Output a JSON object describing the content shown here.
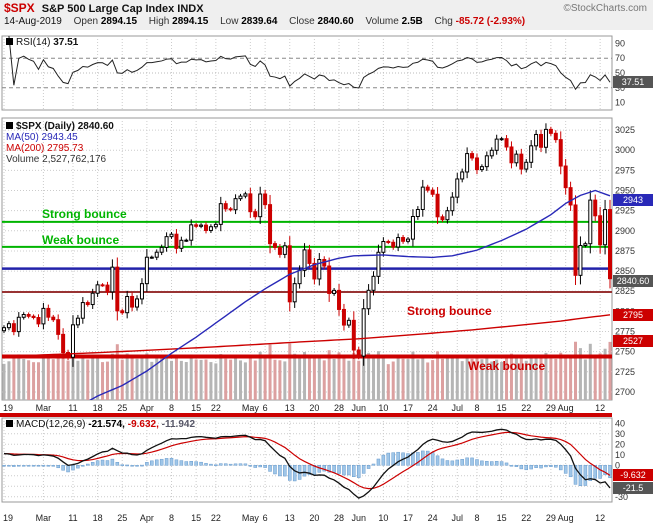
{
  "colors": {
    "symbol_red": "#cc0000",
    "up_candle": "#000000",
    "down_candle": "#cc0000",
    "ma50_blue": "#2929b8",
    "ma200_red": "#cc0000",
    "green_annotation": "#00b400",
    "red_annotation": "#cc0000",
    "blue_support": "#2222aa",
    "macd_histogram": "#9fc6e8",
    "volume_up": "#b5b5b5",
    "volume_down": "#dca0a0"
  },
  "header": {
    "symbol": "$SPX",
    "title": "S&P 500 Large Cap Index INDX",
    "brand": "©StockCharts.com",
    "date": "14-Aug-2019",
    "quote": {
      "open": {
        "label": "Open",
        "value": "2894.15"
      },
      "high": {
        "label": "High",
        "value": "2894.15"
      },
      "low": {
        "label": "Low",
        "value": "2839.64"
      },
      "close": {
        "label": "Close",
        "value": "2840.60"
      },
      "volume": {
        "label": "Volume",
        "value": "2.5B"
      },
      "chg": {
        "label": "Chg",
        "value": "-85.72 (-2.93%)"
      }
    }
  },
  "legends": {
    "rsi": {
      "label": "RSI(14)",
      "value": "37.51"
    },
    "price": {
      "symbol": "$SPX (Daily)",
      "value": "2840.60",
      "ma50": "MA(50) 2943.45",
      "ma200": "MA(200) 2795.73",
      "volume": "Volume 2,527,762,176"
    },
    "macd": {
      "label": "MACD(12,26,9)",
      "v1": "-21.574,",
      "v2": "-9.632,",
      "v3": "-11.942"
    }
  },
  "axis_boxes": {
    "rsi": "37.51",
    "ma50": "2943",
    "close": "2840.60",
    "ma200": "2795",
    "volume": "2527",
    "macd_signal": "-9.632",
    "macd_line": "-21.5"
  },
  "annotations": {
    "labels": [
      {
        "text": "Strong bounce",
        "color": "#00b400"
      },
      {
        "text": "Weak bounce",
        "color": "#00b400"
      },
      {
        "text": "Strong bounce",
        "color": "#cc0000"
      },
      {
        "text": "Weak bounce",
        "color": "#cc0000"
      }
    ]
  },
  "chart_data": {
    "type": "candlestick",
    "title": "$SPX S&P 500 Large Cap Index (Daily)",
    "last_close": 2840.6,
    "last_volume": "2,527,762,176",
    "open0": 2776.0,
    "close": [
      2779.76,
      2784.7,
      2774.88,
      2792.67,
      2796.11,
      2793.9,
      2792.38,
      2784.49,
      2803.69,
      2792.81,
      2789.65,
      2771.45,
      2748.93,
      2743.07,
      2783.3,
      2791.52,
      2810.92,
      2808.48,
      2822.48,
      2832.94,
      2832.57,
      2824.23,
      2854.88,
      2800.71,
      2798.36,
      2818.46,
      2805.37,
      2815.44,
      2834.4,
      2867.19,
      2867.24,
      2873.4,
      2879.39,
      2892.74,
      2895.77,
      2878.2,
      2888.21,
      2888.32,
      2907.41,
      2905.58,
      2907.06,
      2900.45,
      2905.03,
      2907.97,
      2933.68,
      2927.25,
      2926.17,
      2939.88,
      2943.03,
      2945.83,
      2923.73,
      2917.52,
      2945.64,
      2932.47,
      2884.05,
      2879.42,
      2870.72,
      2881.4,
      2811.87,
      2834.41,
      2850.96,
      2876.32,
      2859.53,
      2840.23,
      2864.36,
      2856.27,
      2822.24,
      2826.06,
      2802.39,
      2783.02,
      2788.86,
      2752.06,
      2744.45,
      2803.27,
      2826.15,
      2843.49,
      2873.34,
      2886.73,
      2885.72,
      2879.84,
      2891.64,
      2886.98,
      2889.67,
      2917.75,
      2926.46,
      2954.18,
      2950.46,
      2945.35,
      2917.38,
      2913.78,
      2924.92,
      2941.76,
      2964.33,
      2973.01,
      2995.82,
      2990.41,
      2975.95,
      2979.63,
      2993.07,
      2999.91,
      3013.77,
      3014.3,
      3004.04,
      2984.42,
      2995.11,
      2976.61,
      2985.03,
      3005.47,
      3019.56,
      3003.67,
      3025.86,
      3020.97,
      3013.18,
      2980.38,
      2953.56,
      2932.05,
      2844.74,
      2881.77,
      2883.98,
      2938.09,
      2918.65,
      2882.7,
      2926.32,
      2840.6
    ],
    "x_ticks": [
      [
        0,
        "19"
      ],
      [
        8,
        "Mar"
      ],
      [
        14,
        "11"
      ],
      [
        19,
        "18"
      ],
      [
        24,
        "25"
      ],
      [
        29,
        "Apr"
      ],
      [
        34,
        "8"
      ],
      [
        39,
        "15"
      ],
      [
        43,
        "22"
      ],
      [
        50,
        "May"
      ],
      [
        53,
        "6"
      ],
      [
        58,
        "13"
      ],
      [
        63,
        "20"
      ],
      [
        68,
        "28"
      ],
      [
        72,
        "Jun"
      ],
      [
        77,
        "10"
      ],
      [
        82,
        "17"
      ],
      [
        87,
        "24"
      ],
      [
        92,
        "Jul"
      ],
      [
        96,
        "8"
      ],
      [
        101,
        "15"
      ],
      [
        106,
        "22"
      ],
      [
        111,
        "29"
      ],
      [
        114,
        "Aug"
      ],
      [
        121,
        "12"
      ]
    ],
    "price_axis": {
      "min": 2690,
      "max": 3040,
      "tick_step": 25,
      "first_tick": 2700,
      "last_tick": 3025
    },
    "rsi": {
      "period": 14,
      "last": 37.51,
      "ticks": [
        90,
        70,
        50,
        30,
        10
      ],
      "ref_lines": [
        70,
        50,
        30
      ]
    },
    "macd": {
      "params": [
        12,
        26,
        9
      ],
      "last_macd": -21.574,
      "last_signal": -9.632,
      "last_hist": -11.942,
      "ticks": [
        40,
        30,
        20,
        10,
        0,
        -30
      ],
      "min": -35,
      "max": 45
    },
    "ma50": {
      "last": 2943.45,
      "anchors": [
        [
          0,
          2640
        ],
        [
          8,
          2658
        ],
        [
          14,
          2678
        ],
        [
          19,
          2695
        ],
        [
          24,
          2708
        ],
        [
          29,
          2726
        ],
        [
          34,
          2748
        ],
        [
          39,
          2768
        ],
        [
          44,
          2790
        ],
        [
          49,
          2812
        ],
        [
          53,
          2828
        ],
        [
          58,
          2846
        ],
        [
          63,
          2858
        ],
        [
          68,
          2866
        ],
        [
          71,
          2869
        ],
        [
          77,
          2870
        ],
        [
          82,
          2868
        ],
        [
          87,
          2867
        ],
        [
          91,
          2869
        ],
        [
          96,
          2876
        ],
        [
          101,
          2888
        ],
        [
          106,
          2902
        ],
        [
          111,
          2920
        ],
        [
          114,
          2934
        ],
        [
          117,
          2944
        ],
        [
          120,
          2950
        ],
        [
          123,
          2943.45
        ]
      ]
    },
    "ma200": {
      "last": 2795.73,
      "anchors": [
        [
          0,
          2744
        ],
        [
          20,
          2749
        ],
        [
          40,
          2755
        ],
        [
          60,
          2762
        ],
        [
          72,
          2766
        ],
        [
          85,
          2772
        ],
        [
          95,
          2777
        ],
        [
          105,
          2783
        ],
        [
          113,
          2788
        ],
        [
          118,
          2792
        ],
        [
          123,
          2795.73
        ]
      ]
    },
    "hlines": [
      {
        "name": "strong-bounce-green",
        "value": 2911,
        "color": "#00b400",
        "width": 2
      },
      {
        "name": "weak-bounce-green",
        "value": 2880,
        "color": "#00b400",
        "width": 2
      },
      {
        "name": "blue-support",
        "value": 2853,
        "color": "#2222aa",
        "width": 2.5
      },
      {
        "name": "strong-bounce-red",
        "value": 2824,
        "color": "#993333",
        "width": 2
      },
      {
        "name": "weak-bounce-red",
        "value": 2744,
        "color": "#cc0000",
        "width": 4
      }
    ]
  }
}
